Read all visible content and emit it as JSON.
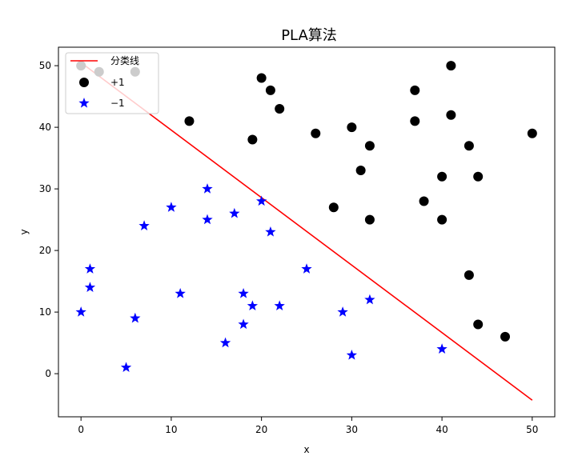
{
  "chart_data": {
    "type": "scatter",
    "title": "PLA算法",
    "xlabel": "x",
    "ylabel": "y",
    "xlim": [
      -2.5,
      52.5
    ],
    "ylim": [
      -7.0,
      53.0
    ],
    "xticks": [
      0,
      10,
      20,
      30,
      40,
      50
    ],
    "yticks": [
      0,
      10,
      20,
      30,
      40,
      50
    ],
    "grid": false,
    "legend_position": "top-left",
    "series": [
      {
        "name": "分类线",
        "kind": "line",
        "color": "#ff0000",
        "x": [
          0,
          50
        ],
        "y": [
          50.5,
          -4.3
        ]
      },
      {
        "name": "+1",
        "kind": "scatter",
        "marker": "circle",
        "color": "#000000",
        "x": [
          0,
          2,
          6,
          12,
          19,
          20,
          21,
          22,
          26,
          28,
          30,
          31,
          32,
          32,
          37,
          37,
          38,
          40,
          40,
          41,
          41,
          43,
          43,
          44,
          44,
          47,
          50
        ],
        "y": [
          50,
          49,
          49,
          41,
          38,
          48,
          46,
          43,
          39,
          27,
          40,
          33,
          37,
          25,
          46,
          41,
          28,
          32,
          25,
          50,
          42,
          37,
          16,
          32,
          8,
          6,
          39
        ]
      },
      {
        "name": "−1",
        "kind": "scatter",
        "marker": "star",
        "color": "#0000ff",
        "x": [
          0,
          1,
          1,
          5,
          6,
          7,
          10,
          11,
          14,
          14,
          16,
          17,
          18,
          18,
          19,
          20,
          21,
          22,
          25,
          29,
          30,
          32,
          40
        ],
        "y": [
          10,
          17,
          14,
          1,
          9,
          24,
          27,
          13,
          30,
          25,
          5,
          26,
          13,
          8,
          11,
          28,
          23,
          11,
          17,
          10,
          3,
          12,
          4
        ]
      }
    ]
  }
}
